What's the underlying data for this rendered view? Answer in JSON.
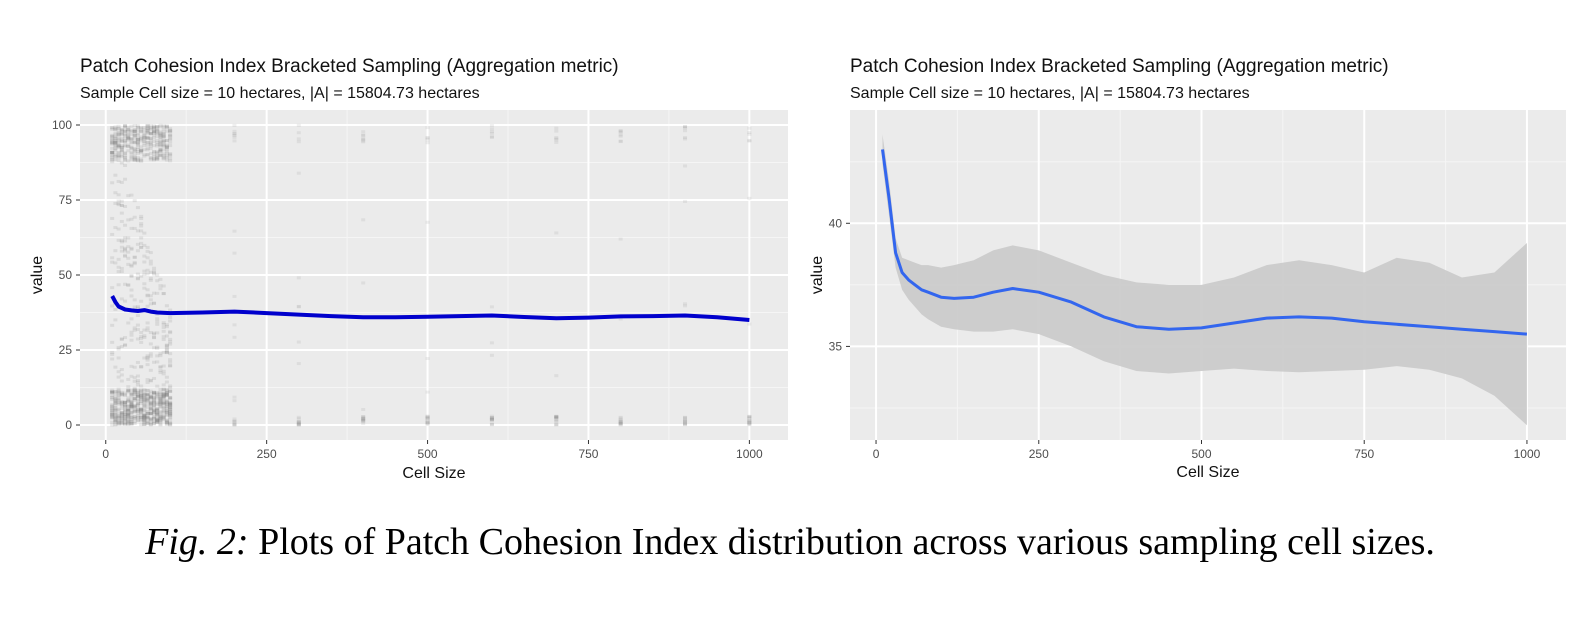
{
  "caption": {
    "label": "Fig. 2:",
    "text": " Plots of Patch Cohesion Index distribution across various sampling cell sizes."
  },
  "chart_data": [
    {
      "type": "scatter",
      "title": "Patch Cohesion Index Bracketed Sampling (Aggregation metric)",
      "subtitle": "Sample Cell size = 10 hectares, |A| = 15804.73 hectares",
      "xlabel": "Cell Size",
      "ylabel": "value",
      "xlim": [
        -40,
        1060
      ],
      "ylim": [
        -5,
        105
      ],
      "xticks": [
        0,
        250,
        500,
        750,
        1000
      ],
      "yticks": [
        0,
        25,
        50,
        75,
        100
      ],
      "grid": true,
      "point_color": "#7f7f7f",
      "line_color": "#0000cc",
      "dense_range": [
        10,
        100
      ],
      "dense_step": 5,
      "sparse_x": [
        200,
        300,
        400,
        500,
        600,
        700,
        800,
        900,
        1000
      ],
      "trend": {
        "x": [
          10,
          15,
          20,
          30,
          40,
          50,
          60,
          70,
          80,
          100,
          150,
          200,
          250,
          300,
          350,
          400,
          450,
          500,
          550,
          600,
          650,
          700,
          750,
          800,
          850,
          900,
          950,
          1000
        ],
        "y": [
          43,
          41,
          39.5,
          38.5,
          38.2,
          38,
          38.3,
          37.8,
          37.5,
          37.3,
          37.5,
          37.8,
          37.3,
          36.8,
          36.3,
          35.9,
          35.9,
          36.1,
          36.3,
          36.5,
          36.0,
          35.6,
          35.8,
          36.2,
          36.3,
          36.5,
          35.9,
          35.0
        ]
      }
    },
    {
      "type": "line",
      "title": "Patch Cohesion Index Bracketed Sampling (Aggregation metric)",
      "subtitle": "Sample Cell size = 10 hectares, |A| = 15804.73 hectares",
      "xlabel": "Cell Size",
      "ylabel": "value",
      "xlim": [
        -40,
        1060
      ],
      "ylim": [
        31.2,
        44.6
      ],
      "xticks": [
        0,
        250,
        500,
        750,
        1000
      ],
      "yticks": [
        35,
        40
      ],
      "grid": true,
      "line_color": "#3366ee",
      "band_color": "#cbcbcb",
      "series": [
        {
          "x": [
            10,
            20,
            30,
            40,
            50,
            60,
            70,
            80,
            100,
            120,
            150,
            180,
            210,
            250,
            300,
            350,
            400,
            450,
            500,
            550,
            600,
            650,
            700,
            750,
            800,
            850,
            900,
            950,
            1000
          ],
          "y": [
            43.0,
            41.0,
            38.8,
            38.0,
            37.7,
            37.5,
            37.3,
            37.2,
            37.0,
            36.95,
            37.0,
            37.2,
            37.35,
            37.2,
            36.8,
            36.2,
            35.8,
            35.7,
            35.75,
            35.95,
            36.15,
            36.2,
            36.15,
            36.0,
            35.9,
            35.8,
            35.7,
            35.6,
            35.5
          ],
          "lower": [
            42.4,
            40.3,
            38.2,
            37.3,
            36.9,
            36.6,
            36.3,
            36.1,
            35.8,
            35.7,
            35.6,
            35.6,
            35.7,
            35.5,
            35.0,
            34.4,
            34.0,
            33.9,
            34.0,
            34.1,
            34.0,
            33.95,
            34.0,
            34.05,
            34.2,
            34.05,
            33.7,
            33.0,
            31.8
          ],
          "upper": [
            43.6,
            41.7,
            39.4,
            38.6,
            38.5,
            38.4,
            38.3,
            38.3,
            38.2,
            38.3,
            38.5,
            38.9,
            39.1,
            38.9,
            38.4,
            37.9,
            37.6,
            37.5,
            37.5,
            37.8,
            38.3,
            38.5,
            38.3,
            38.0,
            38.6,
            38.4,
            37.8,
            38.0,
            39.2
          ]
        }
      ]
    }
  ]
}
